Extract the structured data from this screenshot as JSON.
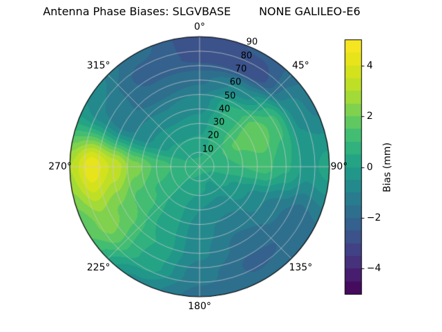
{
  "chart_data": {
    "type": "heatmap",
    "projection": "polar",
    "title": "Antenna Phase Biases: SLGVBASE        NONE GALILEO-E6",
    "colormap": "viridis",
    "level_step_mm": 0.5,
    "grid": "on",
    "azimuth_ticks": [
      {
        "angle": 0,
        "label": "0°"
      },
      {
        "angle": 45,
        "label": "45°"
      },
      {
        "angle": 90,
        "label": "90°"
      },
      {
        "angle": 135,
        "label": "135°"
      },
      {
        "angle": 180,
        "label": "180°"
      },
      {
        "angle": 225,
        "label": "225°"
      },
      {
        "angle": 270,
        "label": "270°"
      },
      {
        "angle": 315,
        "label": "315°"
      }
    ],
    "radial_ticks": [
      {
        "value": 10,
        "label": "10"
      },
      {
        "value": 20,
        "label": "20"
      },
      {
        "value": 30,
        "label": "30"
      },
      {
        "value": 40,
        "label": "40"
      },
      {
        "value": 50,
        "label": "50"
      },
      {
        "value": 60,
        "label": "60"
      },
      {
        "value": 70,
        "label": "70"
      },
      {
        "value": 80,
        "label": "80"
      },
      {
        "value": 90,
        "label": "90"
      }
    ],
    "colorbar": {
      "label": "Bias (mm)",
      "range_mm": [
        -5,
        5
      ],
      "ticks": [
        {
          "value": 4,
          "label": "4"
        },
        {
          "value": 2,
          "label": "2"
        },
        {
          "value": 0,
          "label": "0"
        },
        {
          "value": -2,
          "label": "−2"
        },
        {
          "value": -4,
          "label": "−4"
        }
      ]
    },
    "azimuth_deg": [
      0,
      30,
      60,
      90,
      120,
      150,
      180,
      210,
      240,
      270,
      300,
      330,
      360
    ],
    "radius": [
      0,
      15,
      30,
      45,
      60,
      75,
      90
    ],
    "bias_mm": [
      [
        0.7,
        0.2,
        -0.3,
        -0.8,
        -1.6,
        -2.6,
        -2.9
      ],
      [
        0.7,
        0.6,
        0.8,
        0.6,
        -0.8,
        -2.9,
        -2.4
      ],
      [
        0.7,
        0.9,
        1.6,
        2.0,
        1.2,
        -0.6,
        -1.2
      ],
      [
        0.7,
        0.8,
        1.0,
        1.2,
        0.6,
        -0.2,
        0.2
      ],
      [
        0.7,
        0.3,
        -0.2,
        -0.8,
        -1.4,
        -1.9,
        -1.6
      ],
      [
        0.7,
        -0.1,
        -0.7,
        -1.3,
        -1.7,
        -2.1,
        -1.9
      ],
      [
        0.7,
        0.1,
        -0.5,
        -0.8,
        -0.9,
        -1.3,
        -1.7
      ],
      [
        0.7,
        0.4,
        0.2,
        0.3,
        0.5,
        0.4,
        -0.6
      ],
      [
        0.7,
        0.6,
        0.9,
        1.3,
        1.9,
        2.3,
        1.6
      ],
      [
        0.7,
        0.9,
        1.4,
        2.2,
        3.4,
        4.4,
        3.0
      ],
      [
        0.7,
        0.4,
        -0.2,
        -0.9,
        -1.3,
        -1.0,
        -0.5
      ],
      [
        0.7,
        0.2,
        -0.4,
        -1.0,
        -1.9,
        -2.2,
        -1.8
      ],
      [
        0.7,
        0.2,
        -0.3,
        -0.8,
        -1.6,
        -2.6,
        -2.9
      ]
    ]
  }
}
